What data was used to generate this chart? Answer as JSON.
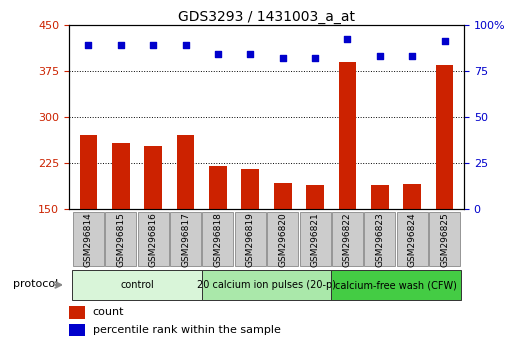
{
  "title": "GDS3293 / 1431003_a_at",
  "samples": [
    "GSM296814",
    "GSM296815",
    "GSM296816",
    "GSM296817",
    "GSM296818",
    "GSM296819",
    "GSM296820",
    "GSM296821",
    "GSM296822",
    "GSM296823",
    "GSM296824",
    "GSM296825"
  ],
  "counts": [
    270,
    258,
    252,
    270,
    220,
    215,
    192,
    188,
    390,
    188,
    190,
    385
  ],
  "percentile_ranks": [
    89,
    89,
    89,
    89,
    84,
    84,
    82,
    82,
    92,
    83,
    83,
    91
  ],
  "protocol_groups": [
    {
      "label": "control",
      "start": 0,
      "end": 4,
      "color": "#d9f5d9"
    },
    {
      "label": "20 calcium ion pulses (20-p)",
      "start": 4,
      "end": 8,
      "color": "#aae8aa"
    },
    {
      "label": "calcium-free wash (CFW)",
      "start": 8,
      "end": 12,
      "color": "#44cc44"
    }
  ],
  "ylim_left": [
    150,
    450
  ],
  "ylim_right": [
    0,
    100
  ],
  "yticks_left": [
    150,
    225,
    300,
    375,
    450
  ],
  "yticks_right": [
    0,
    25,
    50,
    75,
    100
  ],
  "bar_color": "#cc2200",
  "dot_color": "#0000cc",
  "bg_color": "#ffffff",
  "grid_color": "#000000",
  "tick_bg": "#cccccc",
  "legend_count_color": "#cc2200",
  "legend_pct_color": "#0000cc",
  "figsize": [
    5.13,
    3.54
  ],
  "dpi": 100
}
